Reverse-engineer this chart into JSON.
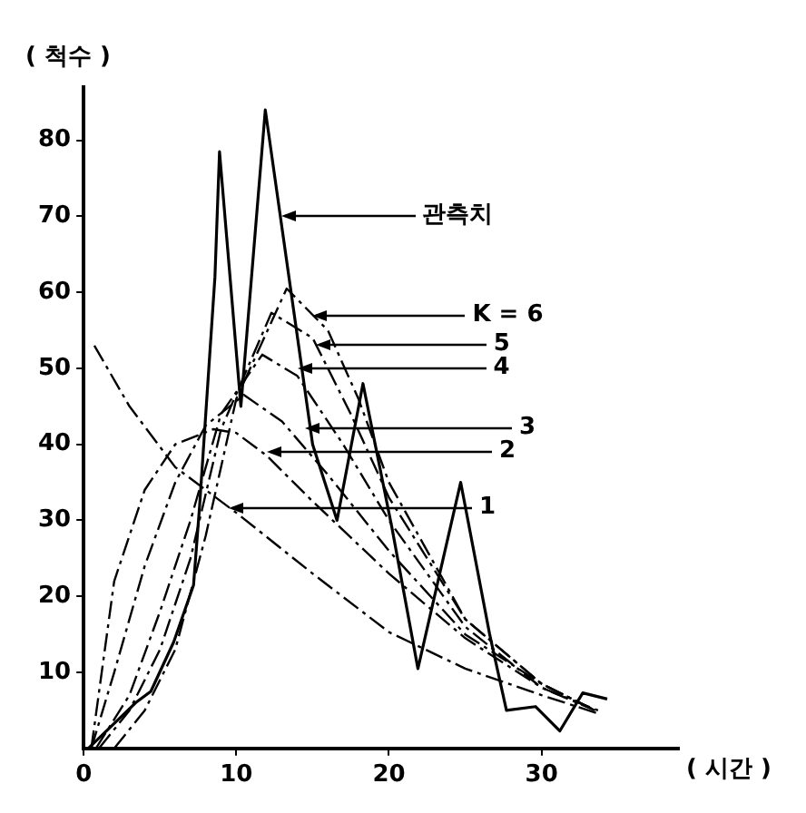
{
  "chart_data": {
    "type": "line",
    "xlabel": "( 시간 )",
    "ylabel": "( 척수 )",
    "xlim": [
      0,
      39
    ],
    "ylim": [
      0,
      87
    ],
    "xticks": [
      0,
      10,
      20,
      30
    ],
    "yticks": [
      10,
      20,
      30,
      40,
      50,
      60,
      70,
      80
    ],
    "grid": false,
    "legend": false,
    "marker": "none",
    "series": [
      {
        "color": "#000000",
        "line_style": "solid",
        "x": [
          0.3,
          3.4,
          4.4,
          5.9,
          7.2,
          7.6,
          8.6,
          8.9,
          10.3,
          11.9,
          15,
          16.6,
          18.3,
          20.2,
          21.9,
          24.7,
          26.6,
          27.7,
          29.6,
          31.2,
          32.7,
          34.3
        ],
        "values": [
          0,
          6,
          7.5,
          14,
          21.5,
          32,
          62,
          78.5,
          45,
          84,
          40,
          30,
          48,
          29,
          10.5,
          35,
          15,
          5,
          5.5,
          2.3,
          7.3,
          6.5
        ]
      },
      {
        "color": "#000000",
        "line_style": "dashed",
        "x": [
          0.7,
          3,
          6,
          10,
          15,
          20,
          25,
          30,
          33.7
        ],
        "values": [
          53,
          45,
          37,
          31,
          23,
          15.3,
          10.5,
          7,
          4.6
        ]
      },
      {
        "color": "#000000",
        "line_style": "dashed",
        "x": [
          0.5,
          2,
          4,
          6,
          8.5,
          10,
          12,
          15,
          20,
          25,
          30,
          33.7
        ],
        "values": [
          0,
          22,
          34,
          40,
          42,
          41.5,
          38.5,
          32.5,
          23,
          14.5,
          8,
          5
        ]
      },
      {
        "color": "#000000",
        "line_style": "dashed",
        "x": [
          0.5,
          2,
          4,
          6,
          8,
          10.5,
          13,
          16,
          20,
          25,
          30,
          33.5
        ],
        "values": [
          0,
          10,
          24,
          35,
          42.5,
          46.5,
          43,
          36,
          26,
          15,
          8.5,
          5
        ]
      },
      {
        "color": "#000000",
        "line_style": "dashed",
        "x": [
          0.8,
          3,
          5,
          7,
          9,
          11.7,
          14,
          17,
          20,
          25,
          30,
          33.5
        ],
        "values": [
          0,
          7,
          18,
          30,
          44,
          51.8,
          49,
          40,
          30,
          16,
          8,
          5
        ]
      },
      {
        "color": "#000000",
        "line_style": "dashed",
        "x": [
          1,
          3,
          5,
          7,
          9,
          12.3,
          15,
          17.5,
          20,
          25,
          30,
          33
        ],
        "values": [
          0,
          5,
          13,
          25,
          42,
          57.3,
          54,
          44,
          33,
          17,
          8.5,
          5.5
        ]
      },
      {
        "color": "#000000",
        "line_style": "dashed",
        "x": [
          2,
          4,
          6,
          8,
          10,
          13.3,
          16,
          18,
          20,
          25,
          30,
          33
        ],
        "values": [
          0,
          5,
          13,
          28,
          46,
          60.5,
          55,
          46,
          35,
          17,
          8.5,
          5.5
        ]
      }
    ],
    "annotations": [
      {
        "text": "관측치",
        "x": 12.9,
        "y": 70
      },
      {
        "text": "K = 6",
        "x": 15,
        "y": 57
      },
      {
        "text": "5",
        "x": 15.2,
        "y": 53.2
      },
      {
        "text": "4",
        "x": 14,
        "y": 50
      },
      {
        "text": "3",
        "x": 14.5,
        "y": 42
      },
      {
        "text": "2",
        "x": 12,
        "y": 39
      },
      {
        "text": "1",
        "x": 9.5,
        "y": 31.5
      }
    ]
  }
}
